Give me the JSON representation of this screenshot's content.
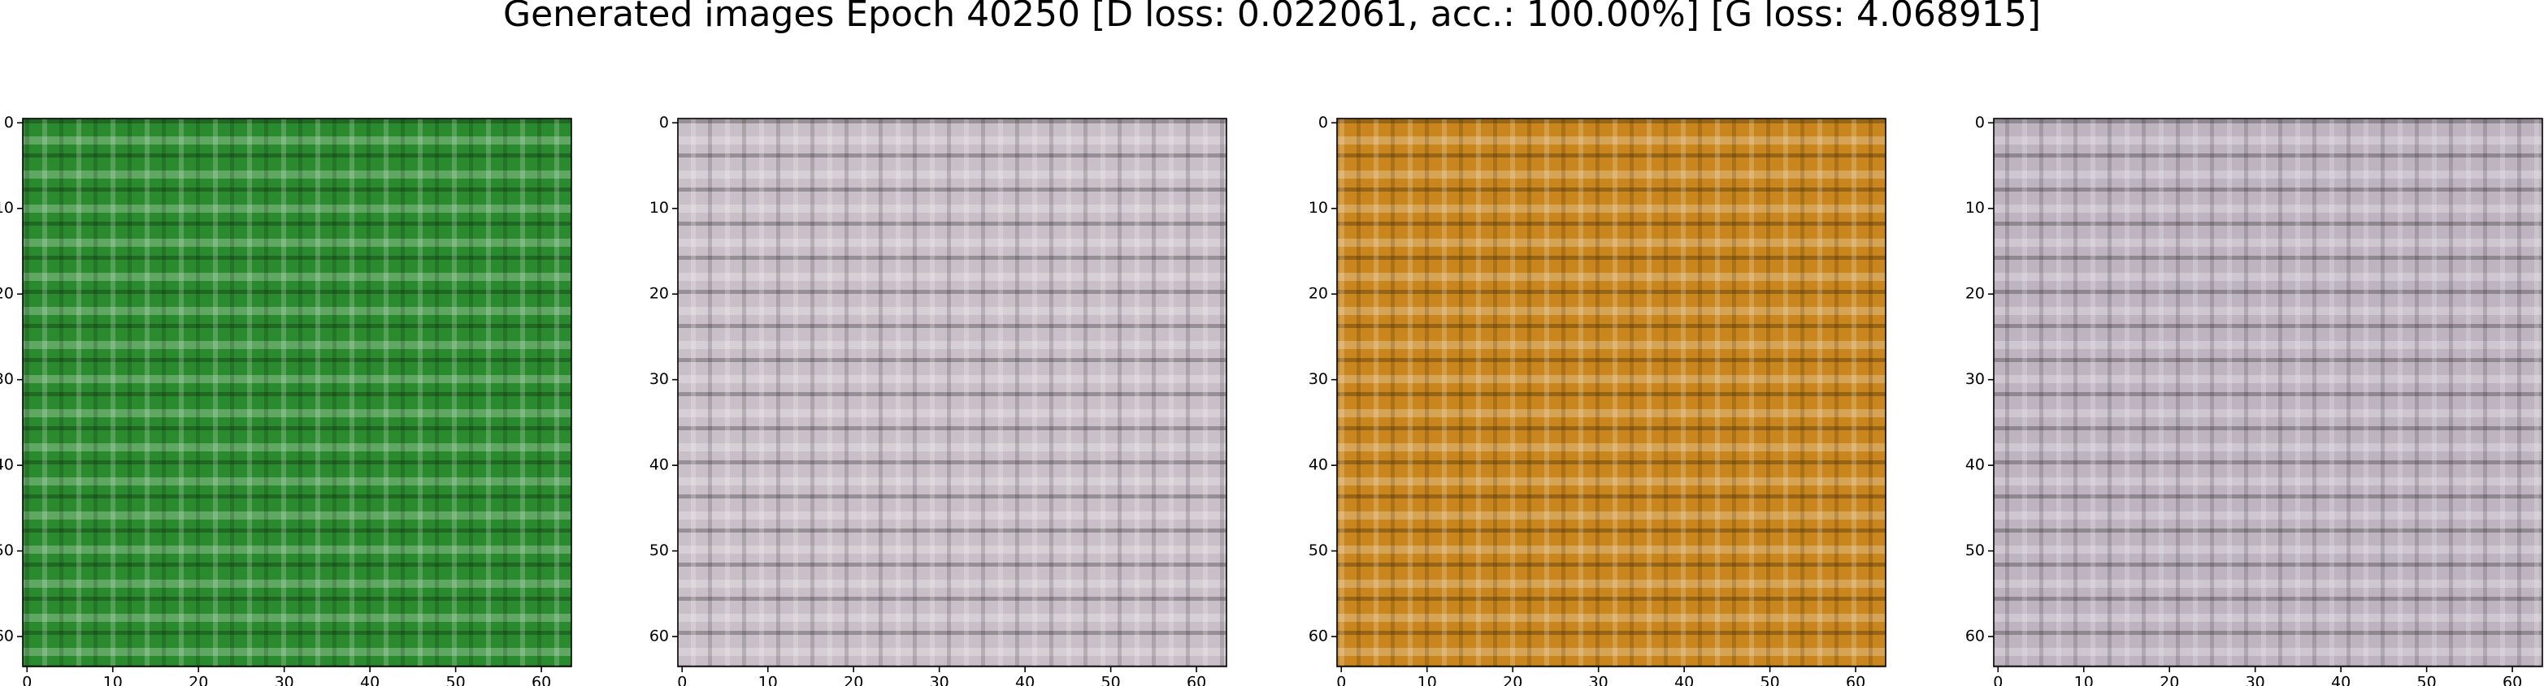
{
  "title": "Generated images Epoch 40250 [D loss: 0.022061, acc.: 100.00%] [G loss: 4.068915]",
  "chart_data": [
    {
      "type": "image",
      "color": "#2a8a2e",
      "xlim": [
        -0.5,
        63.5
      ],
      "ylim": [
        63.5,
        -0.5
      ],
      "xticks": [
        0,
        10,
        20,
        30,
        40,
        50,
        60
      ],
      "yticks": [
        0,
        10,
        20,
        30,
        40,
        50,
        60
      ]
    },
    {
      "type": "image",
      "color": "#c9bfc8",
      "xlim": [
        -0.5,
        63.5
      ],
      "ylim": [
        63.5,
        -0.5
      ],
      "xticks": [
        0,
        10,
        20,
        30,
        40,
        50,
        60
      ],
      "yticks": [
        0,
        10,
        20,
        30,
        40,
        50,
        60
      ]
    },
    {
      "type": "image",
      "color": "#c8861c",
      "xlim": [
        -0.5,
        63.5
      ],
      "ylim": [
        63.5,
        -0.5
      ],
      "xticks": [
        0,
        10,
        20,
        30,
        40,
        50,
        60
      ],
      "yticks": [
        0,
        10,
        20,
        30,
        40,
        50,
        60
      ]
    },
    {
      "type": "image",
      "color": "#bdb4c0",
      "xlim": [
        -0.5,
        63.5
      ],
      "ylim": [
        63.5,
        -0.5
      ],
      "xticks": [
        0,
        10,
        20,
        30,
        40,
        50,
        60
      ],
      "yticks": [
        0,
        10,
        20,
        30,
        40,
        50,
        60
      ]
    }
  ]
}
